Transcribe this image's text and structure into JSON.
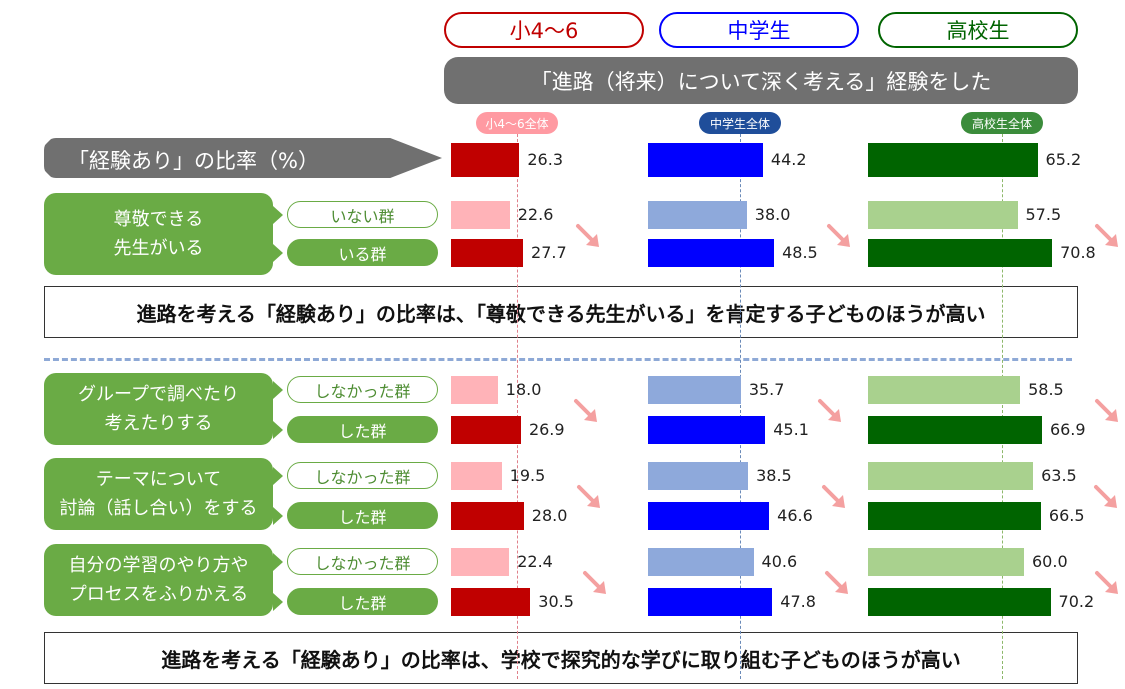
{
  "header": {
    "groups": [
      {
        "label": "小4〜6",
        "color": "#c00000"
      },
      {
        "label": "中学生",
        "color": "#0000ff"
      },
      {
        "label": "高校生",
        "color": "#006400"
      }
    ],
    "title": "「進路（将来）について深く考える」経験をした",
    "overall_badges": [
      "小4〜6全体",
      "中学生全体",
      "高校生全体"
    ]
  },
  "overall_label": "「経験あり」の比率（%）",
  "colors": {
    "dark": [
      "#c00000",
      "#0000ff",
      "#006400"
    ],
    "light": [
      "#ffb3b8",
      "#8ea9db",
      "#a9d18e"
    ],
    "badge": [
      "#ff9aa2",
      "#1f4e9a",
      "#3b8c3b"
    ],
    "refline": [
      "#e0808a",
      "#6a8ab8",
      "#8db86a"
    ],
    "trend_arrow": "#f4a0a0",
    "category_box": "#6aab45"
  },
  "conclusions": [
    "進路を考える「経験あり」の比率は、「尊敬できる先生がいる」を肯定する子どものほうが高い",
    "進路を考える「経験あり」の比率は、学校で探究的な学びに取り組む子どものほうが高い"
  ],
  "chart_data": {
    "type": "bar",
    "unit": "%",
    "series_names": [
      "小4〜6",
      "中学生",
      "高校生"
    ],
    "xlim": [
      0,
      100
    ],
    "overall": {
      "values": [
        26.3,
        44.2,
        65.2
      ],
      "labels": [
        "26.3",
        "44.2",
        "65.2"
      ]
    },
    "categories": [
      {
        "label": "尊敬できる\n先生がいる",
        "rows": [
          {
            "label": "いない群",
            "values": [
              22.6,
              38.0,
              57.5
            ],
            "labels": [
              "22.6",
              "38.0",
              "57.5"
            ]
          },
          {
            "label": "いる群",
            "values": [
              27.7,
              48.5,
              70.8
            ],
            "labels": [
              "27.7",
              "48.5",
              "70.8"
            ]
          }
        ]
      },
      {
        "label": "グループで調べたり\n考えたりする",
        "rows": [
          {
            "label": "しなかった群",
            "values": [
              18.0,
              35.7,
              58.5
            ],
            "labels": [
              "18.0",
              "35.7",
              "58.5"
            ]
          },
          {
            "label": "した群",
            "values": [
              26.9,
              45.1,
              66.9
            ],
            "labels": [
              "26.9",
              "45.1",
              "66.9"
            ]
          }
        ]
      },
      {
        "label": "テーマについて\n討論（話し合い）をする",
        "rows": [
          {
            "label": "しなかった群",
            "values": [
              19.5,
              38.5,
              63.5
            ],
            "labels": [
              "19.5",
              "38.5",
              "63.5"
            ]
          },
          {
            "label": "した群",
            "values": [
              28.0,
              46.6,
              66.5
            ],
            "labels": [
              "28.0",
              "46.6",
              "66.5"
            ]
          }
        ]
      },
      {
        "label": "自分の学習のやり方や\nプロセスをふりかえる",
        "rows": [
          {
            "label": "しなかった群",
            "values": [
              22.4,
              40.6,
              60.0
            ],
            "labels": [
              "22.4",
              "40.6",
              "60.0"
            ]
          },
          {
            "label": "した群",
            "values": [
              30.5,
              47.8,
              70.2
            ],
            "labels": [
              "30.5",
              "47.8",
              "70.2"
            ]
          }
        ]
      }
    ]
  }
}
